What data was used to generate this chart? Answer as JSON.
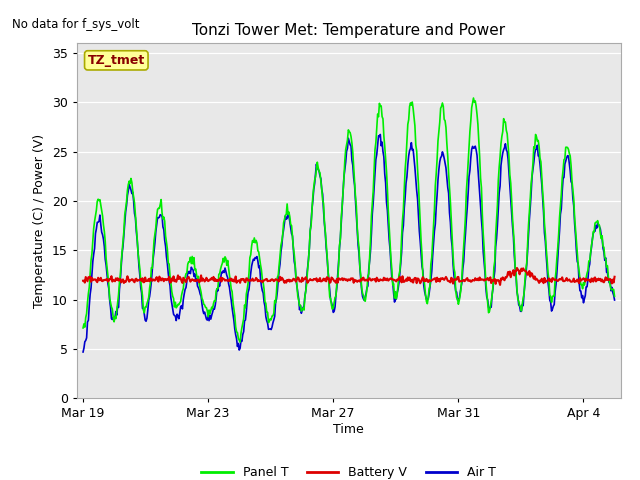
{
  "title": "Tonzi Tower Met: Temperature and Power",
  "no_data_text": "No data for f_sys_volt",
  "label_box_text": "TZ_tmet",
  "xlabel": "Time",
  "ylabel": "Temperature (C) / Power (V)",
  "ylim": [
    0,
    36
  ],
  "yticks": [
    0,
    5,
    10,
    15,
    20,
    25,
    30,
    35
  ],
  "background_color": "#e8e8e8",
  "panel_t_color": "#00ee00",
  "battery_v_color": "#dd0000",
  "air_t_color": "#0000cc",
  "legend_labels": [
    "Panel T",
    "Battery V",
    "Air T"
  ],
  "num_points": 600,
  "figsize": [
    6.4,
    4.8
  ],
  "dpi": 100,
  "day_peaks_panel": [
    19,
    21,
    23,
    16,
    12,
    16,
    16,
    22,
    25,
    29,
    30,
    30,
    29,
    32,
    24,
    29,
    22,
    13
  ],
  "day_troughs_panel": [
    7,
    8,
    9,
    9,
    9,
    6,
    8,
    9,
    9,
    10,
    10,
    10,
    10,
    9,
    9,
    10,
    11,
    11
  ],
  "day_peaks_air": [
    16,
    20,
    23,
    14,
    12,
    14,
    15,
    22,
    25,
    27,
    26,
    25,
    25,
    27,
    24,
    27,
    22,
    13
  ],
  "day_troughs_air": [
    5,
    8,
    8,
    8,
    8,
    5,
    7,
    9,
    9,
    10,
    10,
    10,
    10,
    9,
    9,
    9,
    10,
    11
  ],
  "battery_base": 12.0,
  "battery_noise": 0.15,
  "label_box_color": "#ffff99",
  "label_box_edge": "#aaaa00",
  "label_text_color": "#880000"
}
